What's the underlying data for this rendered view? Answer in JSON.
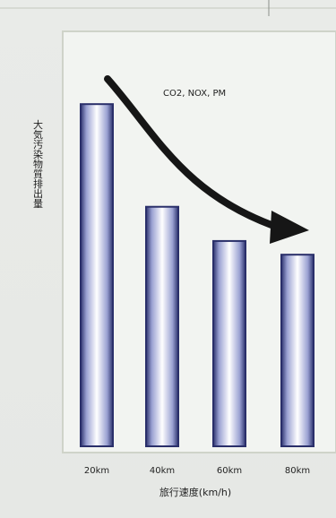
{
  "chart_data": {
    "type": "bar",
    "title": "",
    "annotation": "CO2, NOX, PM",
    "ylabel": "大気汚染物質排出量",
    "xlabel": "旅行速度(km/h)",
    "categories": [
      "20km",
      "40km",
      "60km",
      "80km"
    ],
    "values": [
      100,
      70,
      60,
      56
    ],
    "ylim": [
      0,
      110
    ],
    "grid": false,
    "legend": "none",
    "colors": {
      "bar_edge": "#2a2f6a",
      "bar_center": "#ffffff",
      "bar_mid": "#b8bedf",
      "arrow": "#1a1a1a",
      "frame": "#cfd3c9"
    }
  }
}
